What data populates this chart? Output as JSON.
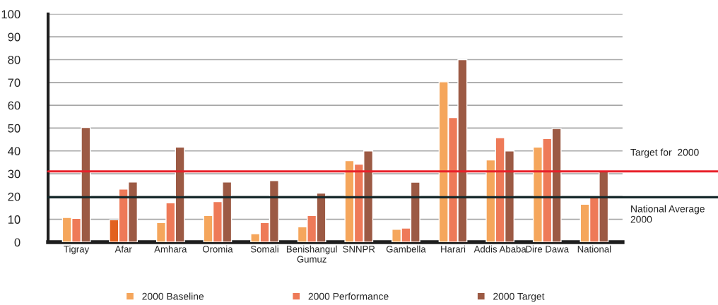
{
  "chart_data": {
    "type": "bar",
    "categories": [
      "Tigray",
      "Afar",
      "Amhara",
      "Oromia",
      "Somali",
      "Benishangul\nGumuz",
      "SNNPR",
      "Gambella",
      "Harari",
      "Addis Ababa",
      "Dire Dawa",
      "National"
    ],
    "series": [
      {
        "name": "2000 Baseline",
        "color": "#f5a65c",
        "colors": [
          "#f5a65c",
          "#e2611f",
          "#f5a65c",
          "#f5a65c",
          "#f5a65c",
          "#f5a65c",
          "#f5a65c",
          "#f5a65c",
          "#f5a65c",
          "#f5a65c",
          "#f5a65c",
          "#f5a65c"
        ],
        "values": [
          10.8,
          9.8,
          8.6,
          11.7,
          3.7,
          6.7,
          35.7,
          5.6,
          70.3,
          36,
          41.7,
          16.6
        ]
      },
      {
        "name": "2000 Performance",
        "color": "#ee7a58",
        "values": [
          10.4,
          23.3,
          17.2,
          17.8,
          8.6,
          11.7,
          34.2,
          6.2,
          54.6,
          45.8,
          45.4,
          20
        ]
      },
      {
        "name": "2000 Target",
        "color": "#9c5a44",
        "values": [
          50.3,
          26.4,
          41.7,
          26.4,
          27,
          21.5,
          40,
          26.3,
          80,
          40,
          49.8,
          31.2
        ]
      }
    ],
    "ylim": [
      0,
      100
    ],
    "yticks": [
      0,
      10,
      20,
      30,
      40,
      50,
      60,
      70,
      80,
      90,
      100
    ],
    "ref_lines": [
      {
        "axis": "y",
        "value": 31,
        "label": "Target for  2000",
        "color": "#e8202a"
      },
      {
        "axis": "y",
        "value": 19.7,
        "label": "National Average\n2000",
        "color": "#15282a"
      }
    ],
    "grid": "y",
    "legend": "bottom"
  }
}
